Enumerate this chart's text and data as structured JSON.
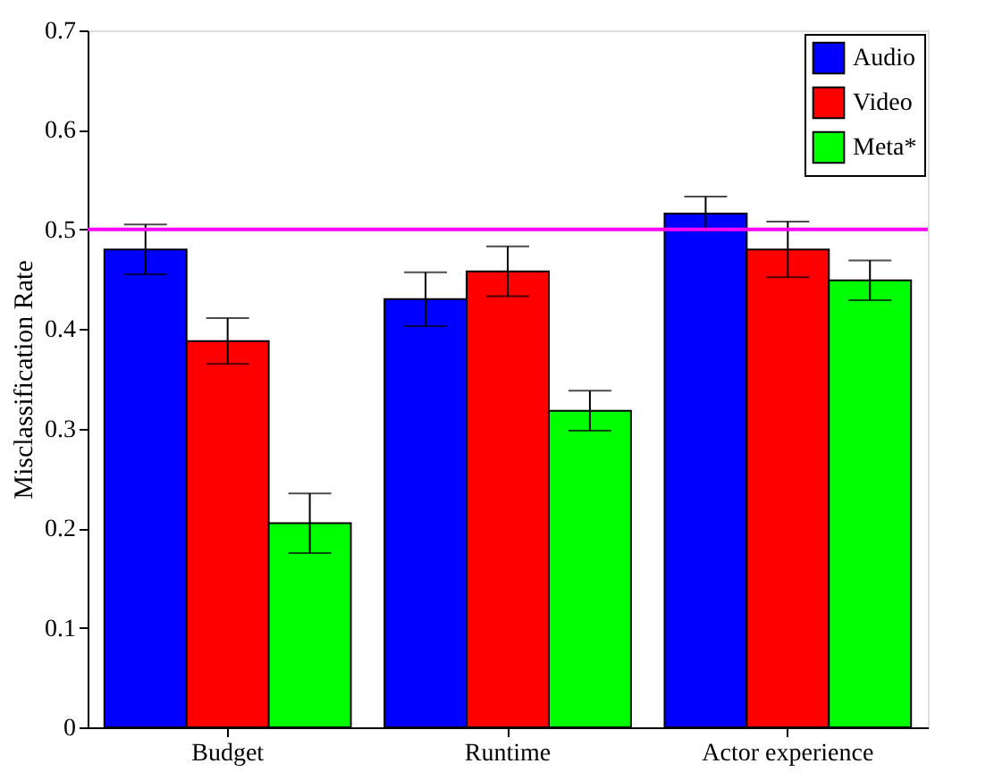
{
  "chart_data": {
    "type": "bar",
    "ylabel": "Misclassification Rate",
    "categories": [
      "Budget",
      "Runtime",
      "Actor experience"
    ],
    "series": [
      {
        "name": "Audio",
        "color": "#0000ff",
        "values": [
          0.48,
          0.43,
          0.516
        ],
        "errors": [
          0.025,
          0.027,
          0.017
        ]
      },
      {
        "name": "Video",
        "color": "#ff0000",
        "values": [
          0.388,
          0.458,
          0.48
        ],
        "errors": [
          0.023,
          0.025,
          0.028
        ]
      },
      {
        "name": "Meta*",
        "color": "#00ff00",
        "values": [
          0.205,
          0.318,
          0.449
        ],
        "errors": [
          0.03,
          0.02,
          0.02
        ]
      }
    ],
    "ylim": [
      0,
      0.7
    ],
    "yticks": [
      0,
      0.1,
      0.2,
      0.3,
      0.4,
      0.5,
      0.6,
      0.7
    ],
    "grid": false,
    "legend": "top right",
    "ref_lines": [
      {
        "axis": "y",
        "value": 0.5,
        "label": null,
        "color": "#ff00ff"
      }
    ]
  }
}
